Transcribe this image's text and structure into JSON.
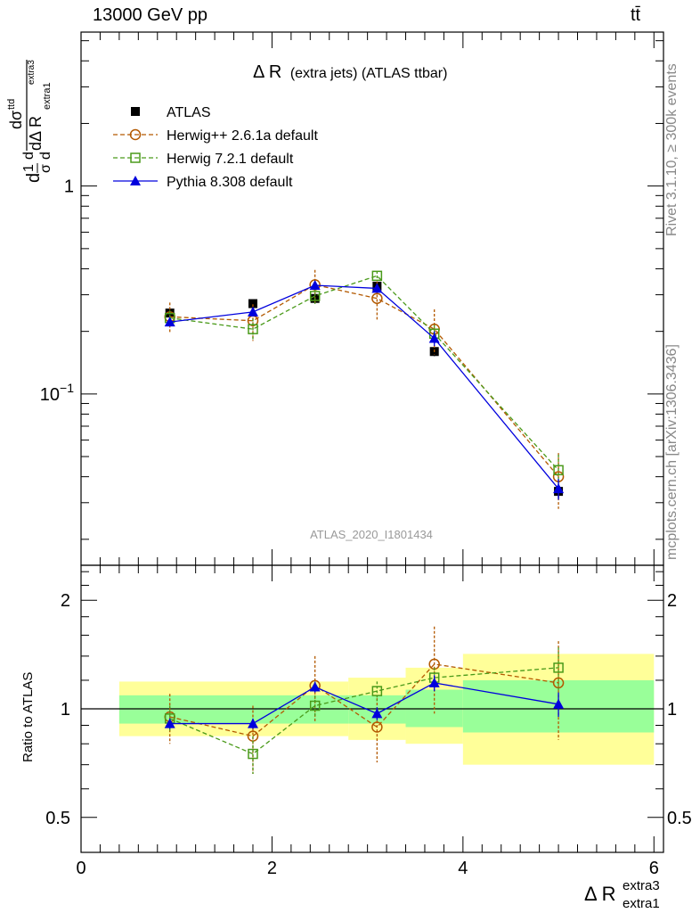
{
  "header": {
    "energy": "13000 GeV pp",
    "process": "tt̄"
  },
  "side": {
    "rivet": "Rivet 3.1.10, ≥ 300k events",
    "mcplots": "mcplots.cern.ch [arXiv:1306.3436]"
  },
  "chart_data": [
    {
      "type": "scatter",
      "panel": "main",
      "title_main": "Δ R",
      "title_rest": "(extra jets) (ATLAS ttbar)",
      "watermark": "ATLAS_2020_I1801434",
      "ylabel": "dσ/dΔ R (normalized)",
      "yscale": "log",
      "ylim": [
        0.015,
        5.5
      ],
      "xlim": [
        0,
        6.1
      ],
      "y_ticks": [
        {
          "value": 1,
          "label": "1"
        },
        {
          "value": 0.1,
          "label": "10−1"
        }
      ],
      "legend_position": "top-left",
      "series": [
        {
          "name": "ATLAS",
          "color": "#000000",
          "marker": "square-filled",
          "x": [
            0.93,
            1.8,
            2.45,
            3.1,
            3.7,
            5.0
          ],
          "y": [
            0.245,
            0.272,
            0.288,
            0.33,
            0.16,
            0.034
          ],
          "err": [
            0.01,
            0.01,
            0.012,
            0.012,
            0.008,
            0.0025
          ]
        },
        {
          "name": "Herwig++ 2.6.1a default",
          "color": "#b35900",
          "marker": "circle-open",
          "x": [
            0.93,
            1.8,
            2.45,
            3.1,
            3.7,
            5.0
          ],
          "y": [
            0.235,
            0.225,
            0.335,
            0.288,
            0.205,
            0.04
          ],
          "err": [
            0.04,
            0.045,
            0.06,
            0.06,
            0.05,
            0.012
          ]
        },
        {
          "name": "Herwig 7.2.1 default",
          "color": "#4a9a1a",
          "marker": "square-open",
          "x": [
            0.93,
            1.8,
            2.45,
            3.1,
            3.7,
            5.0
          ],
          "y": [
            0.232,
            0.205,
            0.296,
            0.37,
            0.195,
            0.043
          ],
          "err": [
            0.02,
            0.025,
            0.025,
            0.02,
            0.02,
            0.008
          ]
        },
        {
          "name": "Pythia 8.308 default",
          "color": "#0000dd",
          "marker": "triangle-filled",
          "x": [
            0.93,
            1.8,
            2.45,
            3.1,
            3.7,
            5.0
          ],
          "y": [
            0.222,
            0.248,
            0.333,
            0.322,
            0.185,
            0.035
          ],
          "err": [
            0.01,
            0.012,
            0.015,
            0.015,
            0.015,
            0.004
          ]
        }
      ]
    },
    {
      "type": "scatter",
      "panel": "ratio",
      "ylabel": "Ratio to ATLAS",
      "xlabel": "Δ R",
      "xlabel_sup": "extra3",
      "xlabel_sub": "extra1",
      "xlim": [
        0,
        6.1
      ],
      "ylim": [
        0.4,
        2.5
      ],
      "y_ticks": [
        {
          "value": 0.5,
          "label": "0.5"
        },
        {
          "value": 1,
          "label": "1"
        },
        {
          "value": 2,
          "label": "2"
        }
      ],
      "x_ticks": [
        {
          "value": 0,
          "label": "0"
        },
        {
          "value": 2,
          "label": "2"
        },
        {
          "value": 4,
          "label": "4"
        },
        {
          "value": 6,
          "label": "6"
        }
      ],
      "bands": [
        {
          "x0": 0.4,
          "x1": 2.8,
          "inner": [
            0.91,
            1.09
          ],
          "outer": [
            0.84,
            1.19
          ]
        },
        {
          "x0": 2.8,
          "x1": 3.4,
          "inner": [
            0.91,
            1.09
          ],
          "outer": [
            0.82,
            1.22
          ]
        },
        {
          "x0": 3.4,
          "x1": 4.0,
          "inner": [
            0.89,
            1.13
          ],
          "outer": [
            0.8,
            1.3
          ]
        },
        {
          "x0": 4.0,
          "x1": 6.0,
          "inner": [
            0.86,
            1.2
          ],
          "outer": [
            0.7,
            1.42
          ]
        }
      ],
      "band_colors": {
        "inner": "#99ff99",
        "outer": "#ffff99"
      },
      "series": [
        {
          "name": "Herwig++ 2.6.1a default",
          "color": "#b35900",
          "marker": "circle-open",
          "x": [
            0.93,
            1.8,
            2.45,
            3.1,
            3.7,
            5.0
          ],
          "y": [
            0.95,
            0.84,
            1.16,
            0.89,
            1.33,
            1.18
          ],
          "err": [
            0.15,
            0.18,
            0.24,
            0.18,
            0.36,
            0.36
          ]
        },
        {
          "name": "Herwig 7.2.1 default",
          "color": "#4a9a1a",
          "marker": "square-open",
          "x": [
            0.93,
            1.8,
            2.45,
            3.1,
            3.7,
            5.0
          ],
          "y": [
            0.94,
            0.75,
            1.02,
            1.12,
            1.22,
            1.3
          ],
          "err": [
            0.08,
            0.09,
            0.07,
            0.07,
            0.08,
            0.18
          ]
        },
        {
          "name": "Pythia 8.308 default",
          "color": "#0000dd",
          "marker": "triangle-filled",
          "x": [
            0.93,
            1.8,
            2.45,
            3.1,
            3.7,
            5.0
          ],
          "y": [
            0.91,
            0.91,
            1.15,
            0.97,
            1.18,
            1.03
          ],
          "err": [
            0.03,
            0.03,
            0.04,
            0.04,
            0.06,
            0.08
          ]
        }
      ]
    }
  ]
}
